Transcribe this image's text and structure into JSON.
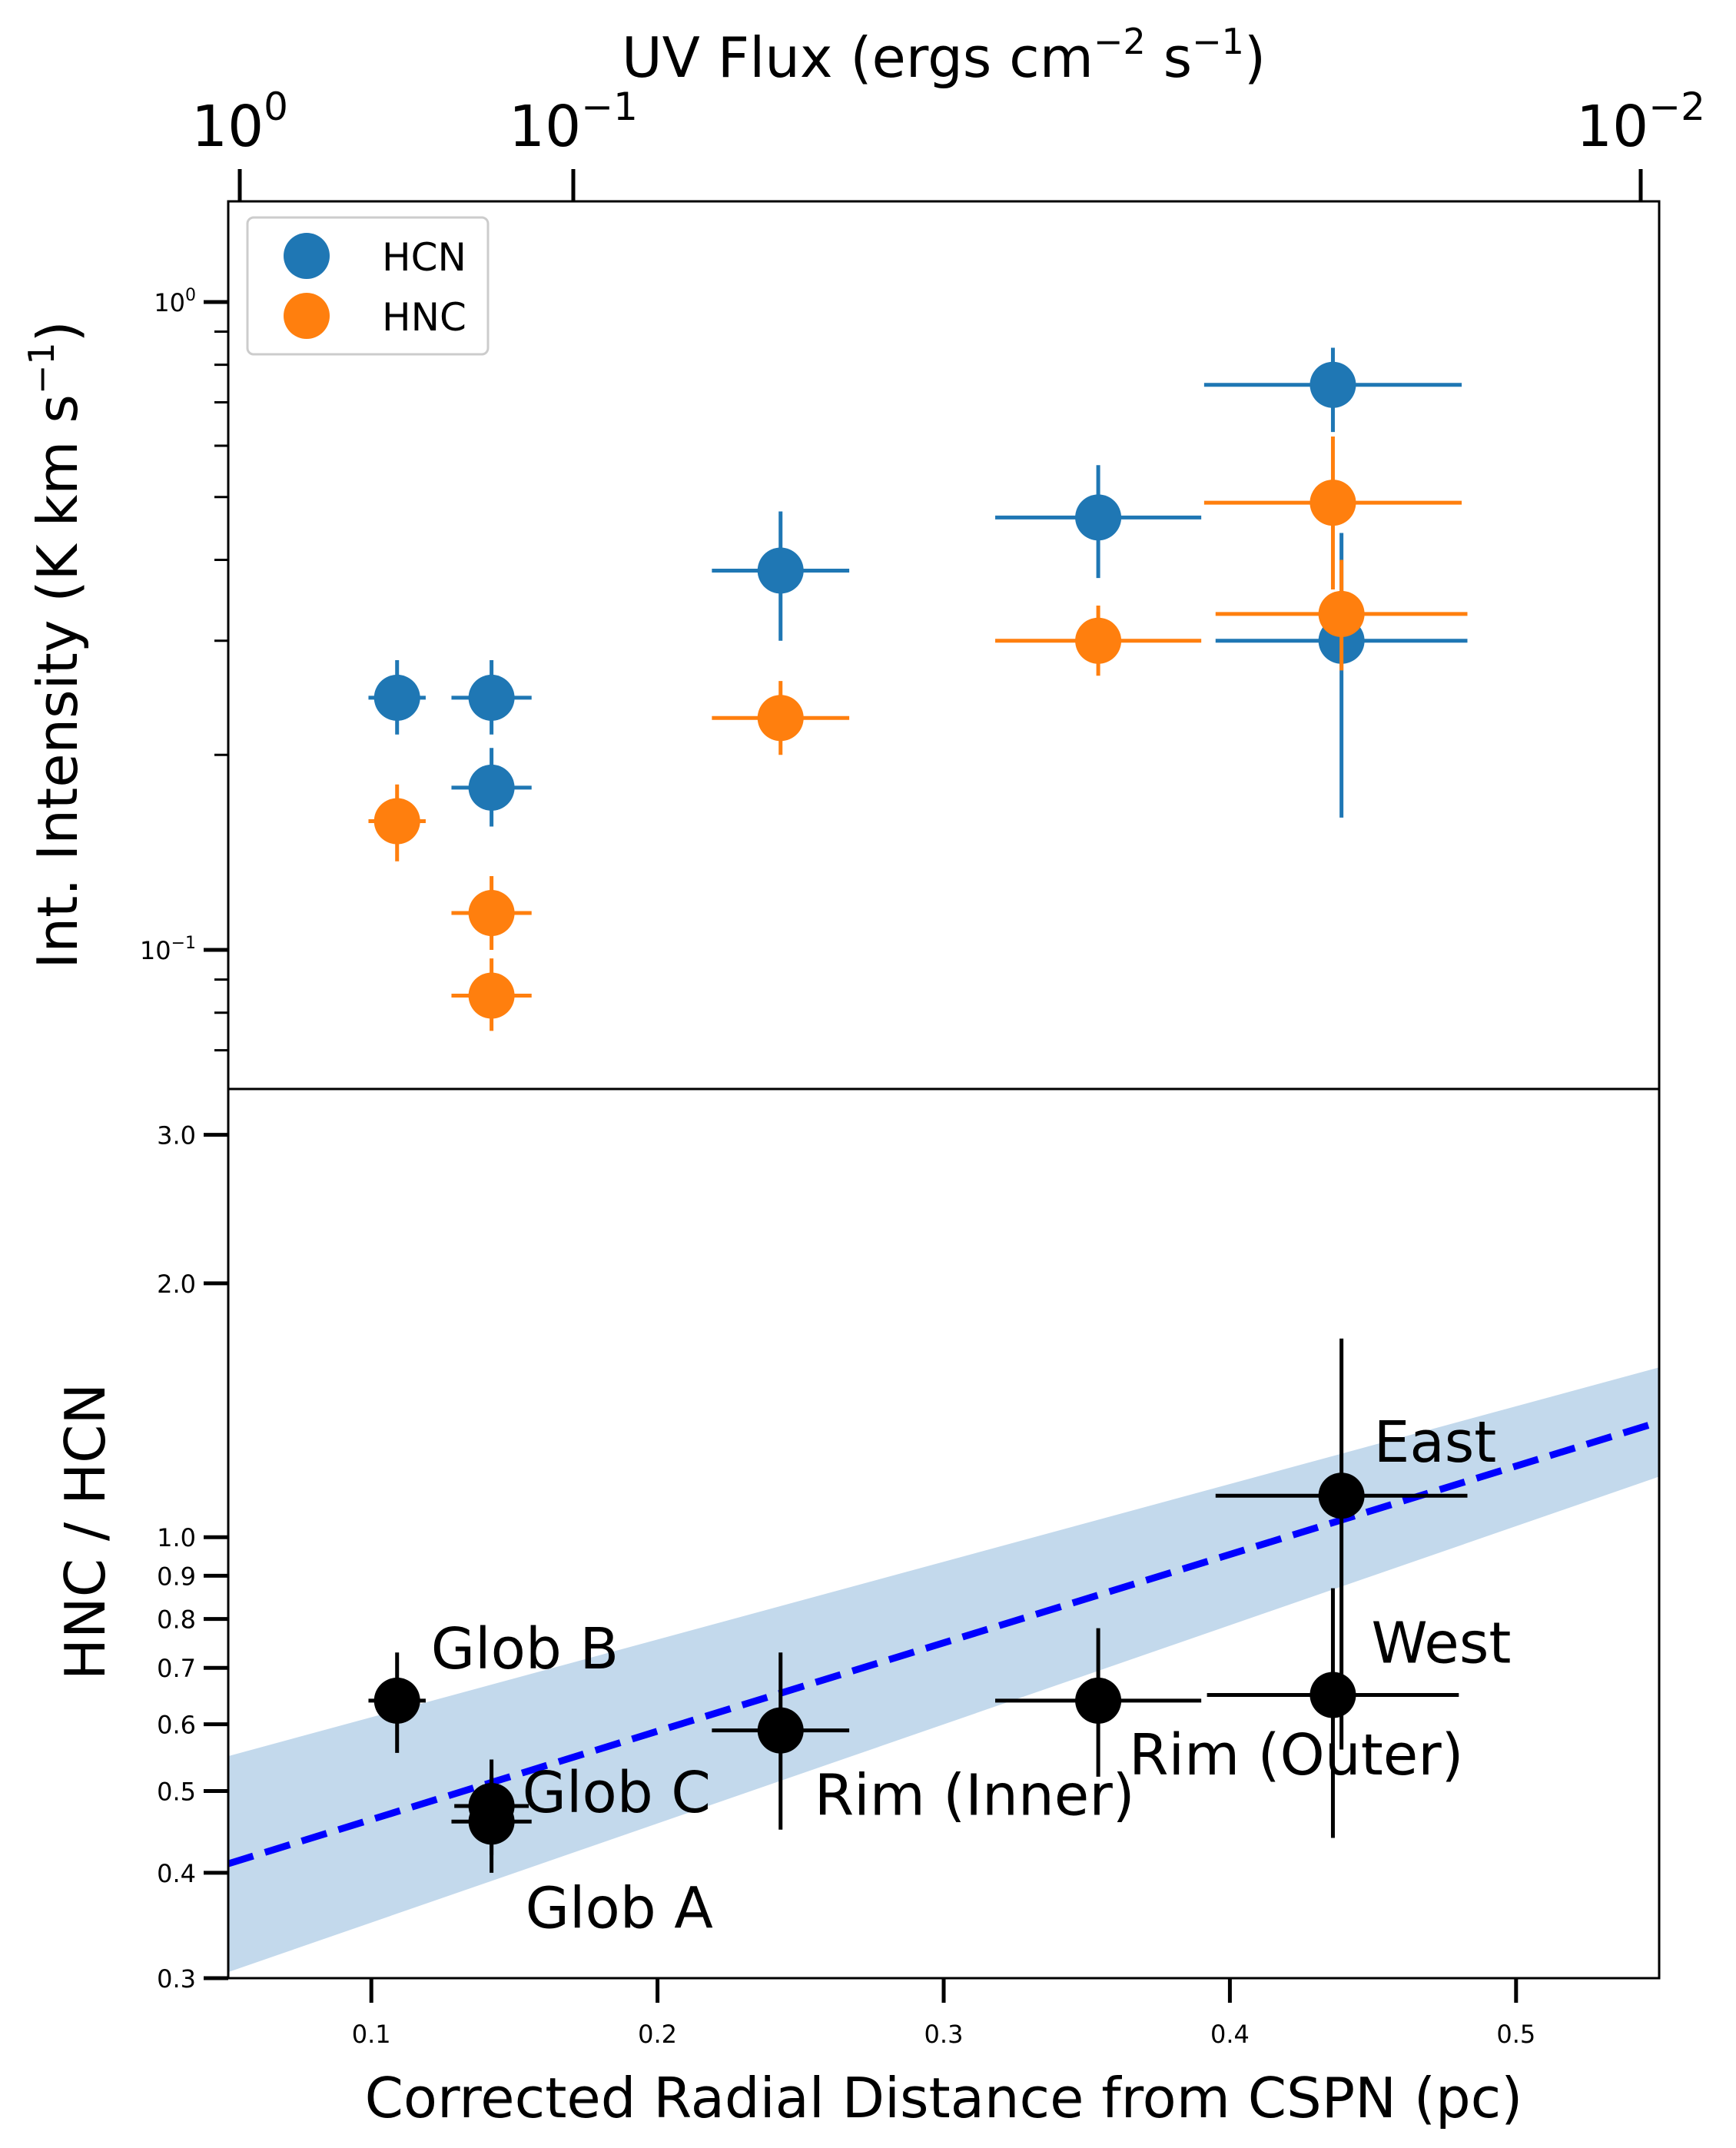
{
  "colors": {
    "hcn": "#1f77b4",
    "hnc": "#ff7f0e",
    "ratio_points": "#000000",
    "fit_line": "#0000ff",
    "fit_band": "#c3d9ec"
  },
  "chart_data": [
    {
      "type": "scatter",
      "panel": "top",
      "top_axis": {
        "label_main": "UV Flux (ergs cm",
        "label_sup1": "−2",
        "label_mid": " s",
        "label_sup2": "−1",
        "label_end": ")",
        "ticks": [
          {
            "base": "10",
            "exp": "0",
            "flux": 1.0
          },
          {
            "base": "10",
            "exp": "−1",
            "flux": 0.1
          },
          {
            "base": "10",
            "exp": "−2",
            "flux": 0.01
          }
        ]
      },
      "ylabel_main": "Int. Intensity (K km s",
      "ylabel_sup": "−1",
      "ylabel_end": ")",
      "yscale": "log",
      "ylim": [
        0.061,
        1.43
      ],
      "xlim": [
        0.05,
        0.55
      ],
      "y_ticks": [
        {
          "base": "10",
          "exp": "0",
          "value": 1.0
        },
        {
          "base": "10",
          "exp": "−1",
          "value": 0.1
        }
      ],
      "legend": {
        "position": "upper-left",
        "entries": [
          "HCN",
          "HNC"
        ]
      },
      "series": [
        {
          "name": "HCN",
          "points": [
            {
              "x": 0.109,
              "y": 0.245,
              "xerr": 0.01,
              "ylo": 0.215,
              "yhi": 0.28
            },
            {
              "x": 0.142,
              "y": 0.245,
              "xerr": 0.014,
              "ylo": 0.215,
              "yhi": 0.28
            },
            {
              "x": 0.142,
              "y": 0.178,
              "xerr": 0.014,
              "ylo": 0.155,
              "yhi": 0.205
            },
            {
              "x": 0.243,
              "y": 0.385,
              "xerr": 0.024,
              "ylo": 0.3,
              "yhi": 0.475
            },
            {
              "x": 0.354,
              "y": 0.465,
              "xerr": 0.036,
              "ylo": 0.375,
              "yhi": 0.56
            },
            {
              "x": 0.436,
              "y": 0.745,
              "xerr": 0.045,
              "ylo": 0.63,
              "yhi": 0.85
            },
            {
              "x": 0.439,
              "y": 0.3,
              "xerr": 0.044,
              "ylo": 0.16,
              "yhi": 0.44
            }
          ]
        },
        {
          "name": "HNC",
          "points": [
            {
              "x": 0.109,
              "y": 0.158,
              "xerr": 0.01,
              "ylo": 0.137,
              "yhi": 0.18
            },
            {
              "x": 0.142,
              "y": 0.114,
              "xerr": 0.014,
              "ylo": 0.1,
              "yhi": 0.13
            },
            {
              "x": 0.142,
              "y": 0.085,
              "xerr": 0.014,
              "ylo": 0.075,
              "yhi": 0.097
            },
            {
              "x": 0.243,
              "y": 0.228,
              "xerr": 0.024,
              "ylo": 0.2,
              "yhi": 0.26
            },
            {
              "x": 0.354,
              "y": 0.3,
              "xerr": 0.036,
              "ylo": 0.265,
              "yhi": 0.34
            },
            {
              "x": 0.436,
              "y": 0.49,
              "xerr": 0.045,
              "ylo": 0.36,
              "yhi": 0.62
            },
            {
              "x": 0.439,
              "y": 0.33,
              "xerr": 0.044,
              "ylo": 0.27,
              "yhi": 0.4
            }
          ]
        }
      ]
    },
    {
      "type": "scatter",
      "panel": "bottom",
      "xlabel": "Corrected Radial Distance from CSPN (pc)",
      "ylabel": "HNC / HCN",
      "xlim": [
        0.05,
        0.55
      ],
      "ylim": [
        0.3,
        3.4
      ],
      "yscale": "log",
      "x_ticks": [
        "0.1",
        "0.2",
        "0.3",
        "0.4",
        "0.5"
      ],
      "x_tick_values": [
        0.1,
        0.2,
        0.3,
        0.4,
        0.5
      ],
      "y_ticks": [
        "0.3",
        "0.4",
        "0.5",
        "0.6",
        "0.7",
        "0.8",
        "0.9",
        "1.0",
        "2.0",
        "3.0"
      ],
      "y_tick_values": [
        0.3,
        0.4,
        0.5,
        0.6,
        0.7,
        0.8,
        0.9,
        1.0,
        2.0,
        3.0
      ],
      "points": [
        {
          "label": "Glob B",
          "x": 0.109,
          "y": 0.64,
          "xerr": 0.01,
          "ylo": 0.555,
          "yhi": 0.73
        },
        {
          "label": "Glob C",
          "x": 0.142,
          "y": 0.48,
          "xerr": 0.013,
          "ylo": 0.42,
          "yhi": 0.545
        },
        {
          "label": "Glob A",
          "x": 0.142,
          "y": 0.46,
          "xerr": 0.014,
          "ylo": 0.4,
          "yhi": 0.52
        },
        {
          "label": "Rim (Inner)",
          "x": 0.243,
          "y": 0.59,
          "xerr": 0.024,
          "ylo": 0.45,
          "yhi": 0.73
        },
        {
          "label": "Rim (Outer)",
          "x": 0.354,
          "y": 0.64,
          "xerr": 0.036,
          "ylo": 0.52,
          "yhi": 0.78
        },
        {
          "label": "East",
          "x": 0.439,
          "y": 1.12,
          "xerr": 0.044,
          "ylo": 0.56,
          "yhi": 1.72
        },
        {
          "label": "West",
          "x": 0.436,
          "y": 0.65,
          "xerr": 0.044,
          "ylo": 0.44,
          "yhi": 0.87
        }
      ],
      "fit": {
        "style": "dashed",
        "x": [
          0.05,
          0.55
        ],
        "y": [
          0.41,
          1.37
        ],
        "band_lower": [
          0.305,
          1.18
        ],
        "band_upper": [
          0.55,
          1.59
        ]
      }
    }
  ]
}
